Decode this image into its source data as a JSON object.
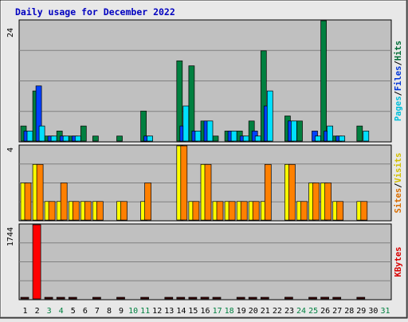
{
  "chart_data": {
    "type": "bar",
    "title": "Daily usage for December 2022",
    "categories": [
      "1",
      "2",
      "3",
      "4",
      "5",
      "6",
      "7",
      "8",
      "9",
      "10",
      "11",
      "12",
      "13",
      "14",
      "15",
      "16",
      "17",
      "18",
      "19",
      "20",
      "21",
      "22",
      "23",
      "24",
      "25",
      "26",
      "27",
      "28",
      "29",
      "30",
      "31"
    ],
    "weekend_days": [
      "3",
      "4",
      "10",
      "11",
      "17",
      "18",
      "24",
      "25",
      "31"
    ],
    "panels": [
      {
        "name": "hits-files-pages",
        "ymax": 24,
        "ymax_label": "24",
        "right_label": [
          "Pages",
          "/",
          "Files",
          "/",
          "Hits"
        ],
        "series": [
          {
            "name": "Hits",
            "color": "#008040",
            "values": [
              3,
              10,
              1,
              2,
              1,
              3,
              1,
              0,
              1,
              0,
              6,
              0,
              0,
              16,
              15,
              4,
              1,
              2,
              2,
              4,
              18,
              0,
              5,
              4,
              0,
              24,
              1,
              0,
              3,
              0,
              0
            ]
          },
          {
            "name": "Files",
            "color": "#0040ff",
            "values": [
              2,
              11,
              1,
              1,
              1,
              0,
              0,
              0,
              0,
              0,
              1,
              0,
              0,
              3,
              2,
              4,
              0,
              2,
              1,
              2,
              7,
              0,
              4,
              0,
              2,
              2,
              1,
              0,
              0,
              0,
              0
            ]
          },
          {
            "name": "Pages",
            "color": "#00e0ff",
            "values": [
              2,
              3,
              1,
              1,
              1,
              0,
              0,
              0,
              0,
              0,
              1,
              0,
              0,
              7,
              2,
              4,
              0,
              2,
              1,
              1,
              10,
              0,
              4,
              0,
              1,
              3,
              1,
              0,
              2,
              0,
              0
            ]
          }
        ]
      },
      {
        "name": "visits-sites",
        "ymax": 4,
        "ymax_label": "4",
        "right_label": [
          "Sites",
          "/",
          "Visits"
        ],
        "series": [
          {
            "name": "Visits",
            "color": "#ffff00",
            "values": [
              2,
              3,
              1,
              1,
              1,
              1,
              1,
              0,
              1,
              0,
              1,
              0,
              0,
              4,
              1,
              3,
              1,
              1,
              1,
              1,
              1,
              0,
              3,
              1,
              2,
              2,
              1,
              0,
              1,
              0,
              0
            ]
          },
          {
            "name": "Sites",
            "color": "#ff8000",
            "values": [
              2,
              3,
              1,
              2,
              1,
              1,
              1,
              0,
              1,
              0,
              2,
              0,
              0,
              4,
              1,
              3,
              1,
              1,
              1,
              1,
              3,
              0,
              3,
              1,
              2,
              2,
              1,
              0,
              1,
              0,
              0
            ]
          }
        ]
      },
      {
        "name": "kbytes",
        "ymax": 1744,
        "ymax_label": "1744",
        "right_label": [
          "KBytes"
        ],
        "series": [
          {
            "name": "KBytes",
            "color": "#ff0000",
            "values": [
              30,
              1744,
              20,
              20,
              20,
              0,
              20,
              0,
              20,
              0,
              20,
              0,
              20,
              20,
              20,
              40,
              20,
              0,
              20,
              20,
              20,
              0,
              40,
              0,
              20,
              40,
              20,
              0,
              20,
              0,
              0
            ]
          }
        ]
      }
    ]
  }
}
